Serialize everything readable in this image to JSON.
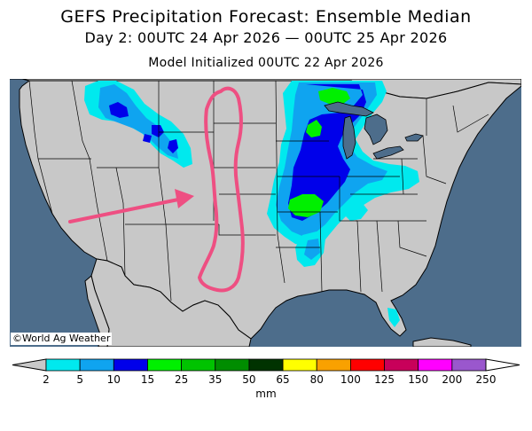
{
  "header": {
    "title": "GEFS Precipitation Forecast: Ensemble Median",
    "valid_period": "Day 2: 00UTC 24 Apr 2026 — 00UTC 25 Apr 2026",
    "init": "Model Initialized 00UTC 22 Apr 2026"
  },
  "credit": "©World Ag Weather",
  "colors": {
    "ocean": "#4d6d8b",
    "land": "#c8c8c8",
    "borders": "#000000",
    "annotation": "#ee4f82"
  },
  "colorbar": {
    "unit": "mm",
    "below_color": "#c8c8c8",
    "above_color": "#9a57cd",
    "bins": [
      {
        "from": 2,
        "to": 5,
        "color": "#00e9ee"
      },
      {
        "from": 5,
        "to": 10,
        "color": "#0fa4f0"
      },
      {
        "from": 10,
        "to": 15,
        "color": "#0000ea"
      },
      {
        "from": 15,
        "to": 25,
        "color": "#00f000"
      },
      {
        "from": 25,
        "to": 35,
        "color": "#00c300"
      },
      {
        "from": 35,
        "to": 50,
        "color": "#008d00"
      },
      {
        "from": 50,
        "to": 65,
        "color": "#003300"
      },
      {
        "from": 65,
        "to": 80,
        "color": "#ffff00"
      },
      {
        "from": 80,
        "to": 100,
        "color": "#f9a100"
      },
      {
        "from": 100,
        "to": 125,
        "color": "#ff0000"
      },
      {
        "from": 125,
        "to": 150,
        "color": "#c8005a"
      },
      {
        "from": 150,
        "to": 200,
        "color": "#ff00ff"
      },
      {
        "from": 200,
        "to": 250,
        "color": "#9a57cd"
      }
    ],
    "tick_labels": [
      "2",
      "5",
      "10",
      "15",
      "25",
      "35",
      "50",
      "65",
      "80",
      "100",
      "125",
      "150",
      "200",
      "250"
    ]
  },
  "annotations": [
    {
      "kind": "arrow",
      "meaning": "flow toward the central Plains"
    },
    {
      "kind": "outline",
      "meaning": "dry corridor from the northern Plains to Texas"
    }
  ]
}
